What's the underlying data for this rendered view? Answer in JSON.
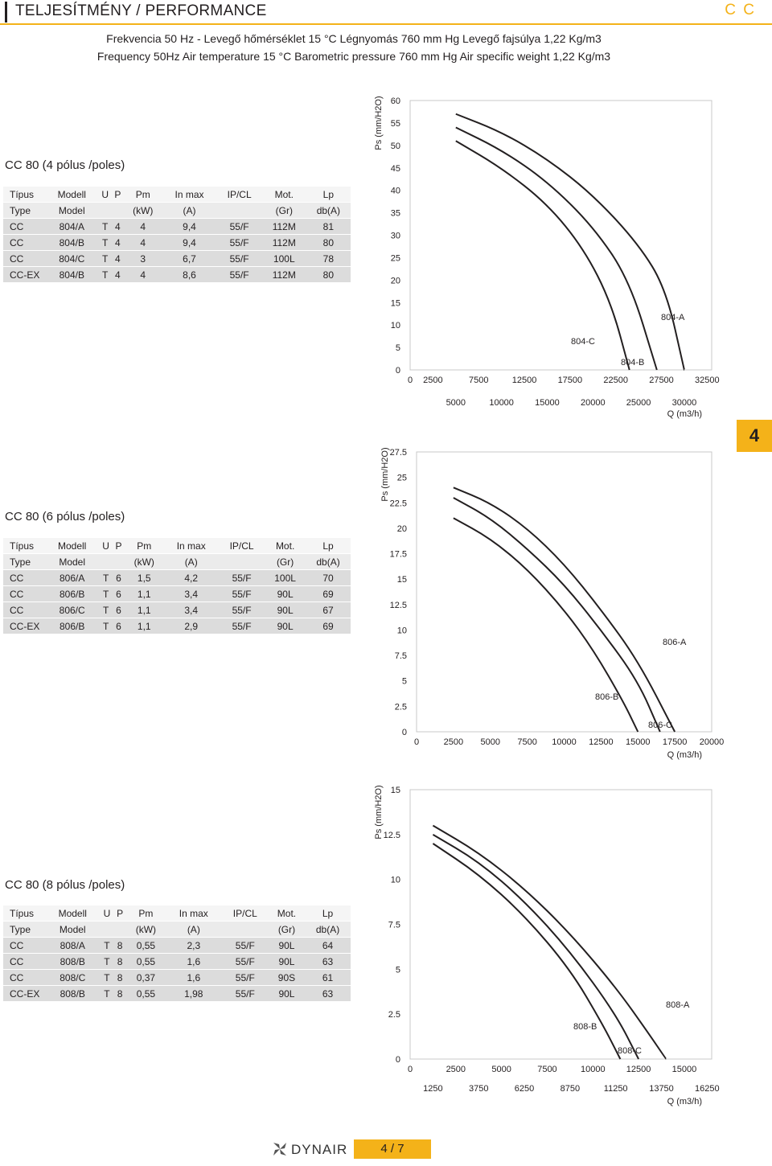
{
  "header": {
    "title": "TELJESÍTMÉNY / PERFORMANCE",
    "brand": "C C"
  },
  "subtitle_hu": "Frekvencia 50 Hz - Levegő hőmérséklet 15 °C Légnyomás 760 mm Hg Levegő fajsúlya 1,22 Kg/m3",
  "subtitle_en": "Frequency 50Hz Air temperature 15 °C Barometric pressure 760 mm Hg Air specific weight 1,22 Kg/m3",
  "tab": "4",
  "table_headers": {
    "row1": [
      "Típus",
      "Modell",
      "U",
      "P",
      "Pm",
      "In max",
      "IP/CL",
      "Mot.",
      "Lp"
    ],
    "row2": [
      "Type",
      "Model",
      "",
      "",
      "(kW)",
      "(A)",
      "",
      "(Gr)",
      "db(A)"
    ]
  },
  "sections": [
    {
      "title": "CC 80 (4 pólus /poles)",
      "rows": [
        [
          "CC",
          "804/A",
          "T",
          "4",
          "4",
          "9,4",
          "55/F",
          "112M",
          "81"
        ],
        [
          "CC",
          "804/B",
          "T",
          "4",
          "4",
          "9,4",
          "55/F",
          "112M",
          "80"
        ],
        [
          "CC",
          "804/C",
          "T",
          "4",
          "3",
          "6,7",
          "55/F",
          "100L",
          "78"
        ],
        [
          "CC-EX",
          "804/B",
          "T",
          "4",
          "4",
          "8,6",
          "55/F",
          "112M",
          "80"
        ]
      ]
    },
    {
      "title": "CC 80 (6 pólus /poles)",
      "rows": [
        [
          "CC",
          "806/A",
          "T",
          "6",
          "1,5",
          "4,2",
          "55/F",
          "100L",
          "70"
        ],
        [
          "CC",
          "806/B",
          "T",
          "6",
          "1,1",
          "3,4",
          "55/F",
          "90L",
          "69"
        ],
        [
          "CC",
          "806/C",
          "T",
          "6",
          "1,1",
          "3,4",
          "55/F",
          "90L",
          "67"
        ],
        [
          "CC-EX",
          "806/B",
          "T",
          "6",
          "1,1",
          "2,9",
          "55/F",
          "90L",
          "69"
        ]
      ]
    },
    {
      "title": "CC 80 (8 pólus /poles)",
      "rows": [
        [
          "CC",
          "808/A",
          "T",
          "8",
          "0,55",
          "2,3",
          "55/F",
          "90L",
          "64"
        ],
        [
          "CC",
          "808/B",
          "T",
          "8",
          "0,55",
          "1,6",
          "55/F",
          "90L",
          "63"
        ],
        [
          "CC",
          "808/C",
          "T",
          "8",
          "0,37",
          "1,6",
          "55/F",
          "90S",
          "61"
        ],
        [
          "CC-EX",
          "808/B",
          "T",
          "8",
          "0,55",
          "1,98",
          "55/F",
          "90L",
          "63"
        ]
      ]
    }
  ],
  "chart_data": [
    {
      "type": "line",
      "ylabel": "Ps (mm/H2O)",
      "xlabel": "Q (m3/h)",
      "ylim": [
        0,
        60
      ],
      "xlim": [
        0,
        33000
      ],
      "yticks": [
        "0",
        "5",
        "10",
        "15",
        "20",
        "25",
        "30",
        "35",
        "40",
        "45",
        "50",
        "55",
        "60"
      ],
      "xticks_top": [
        "0",
        "2500",
        "7500",
        "12500",
        "17500",
        "22500",
        "27500",
        "32500"
      ],
      "xticks_bottom": [
        "5000",
        "10000",
        "15000",
        "20000",
        "25000",
        "30000"
      ],
      "series": [
        {
          "name": "804-A",
          "x": [
            5000,
            10000,
            15000,
            20000,
            25000,
            28000,
            30000
          ],
          "y": [
            57,
            53,
            47,
            39,
            28,
            18,
            0
          ]
        },
        {
          "name": "804-B",
          "x": [
            5000,
            10000,
            15000,
            20000,
            24000,
            27000
          ],
          "y": [
            54,
            49,
            42,
            32,
            20,
            0
          ]
        },
        {
          "name": "804-C",
          "x": [
            5000,
            10000,
            15000,
            19000,
            22000,
            24000
          ],
          "y": [
            51,
            45,
            37,
            27,
            15,
            0
          ]
        }
      ]
    },
    {
      "type": "line",
      "ylabel": "Ps (mm/H2O)",
      "xlabel": "Q (m3/h)",
      "ylim": [
        0,
        27.5
      ],
      "xlim": [
        0,
        20000
      ],
      "yticks": [
        "0",
        "2.5",
        "5",
        "7.5",
        "10",
        "12.5",
        "15",
        "17.5",
        "20",
        "22.5",
        "25",
        "27.5"
      ],
      "xticks": [
        "0",
        "2500",
        "5000",
        "7500",
        "10000",
        "12500",
        "15000",
        "17500",
        "20000"
      ],
      "series": [
        {
          "name": "806-A",
          "x": [
            2500,
            5000,
            7500,
            10000,
            12500,
            15000,
            17500
          ],
          "y": [
            24,
            22.5,
            20,
            16.5,
            12,
            7,
            0
          ]
        },
        {
          "name": "806-B",
          "x": [
            2500,
            5000,
            7500,
            10000,
            12500,
            15000,
            16500
          ],
          "y": [
            23,
            21,
            18,
            14.5,
            10,
            5,
            0
          ]
        },
        {
          "name": "806-C",
          "x": [
            2500,
            5000,
            7500,
            10000,
            12000,
            14000,
            15000
          ],
          "y": [
            21,
            19,
            16,
            12,
            8,
            3,
            0
          ]
        }
      ]
    },
    {
      "type": "line",
      "ylabel": "Ps (mm/H2O)",
      "xlabel": "Q (m3/h)",
      "ylim": [
        0,
        15
      ],
      "xlim": [
        0,
        16500
      ],
      "yticks": [
        "0",
        "2.5",
        "5",
        "7.5",
        "10",
        "12.5",
        "15"
      ],
      "xticks_top": [
        "0",
        "2500",
        "5000",
        "7500",
        "10000",
        "12500",
        "15000"
      ],
      "xticks_bottom": [
        "1250",
        "3750",
        "6250",
        "8750",
        "11250",
        "13750",
        "16250"
      ],
      "series": [
        {
          "name": "808-A",
          "x": [
            1250,
            3750,
            6250,
            8750,
            11250,
            13000,
            14000
          ],
          "y": [
            13,
            11.5,
            9.5,
            7,
            4,
            1.5,
            0
          ]
        },
        {
          "name": "808-B",
          "x": [
            1250,
            3750,
            6250,
            8750,
            11250,
            12500
          ],
          "y": [
            12.5,
            11,
            8.8,
            6,
            2.5,
            0
          ]
        },
        {
          "name": "808-C",
          "x": [
            1250,
            3750,
            6250,
            8750,
            10500,
            11500
          ],
          "y": [
            12,
            10.3,
            8,
            5,
            2,
            0
          ]
        }
      ]
    }
  ],
  "footer": {
    "logo": "DYNAIR",
    "page": "4 / 7"
  }
}
